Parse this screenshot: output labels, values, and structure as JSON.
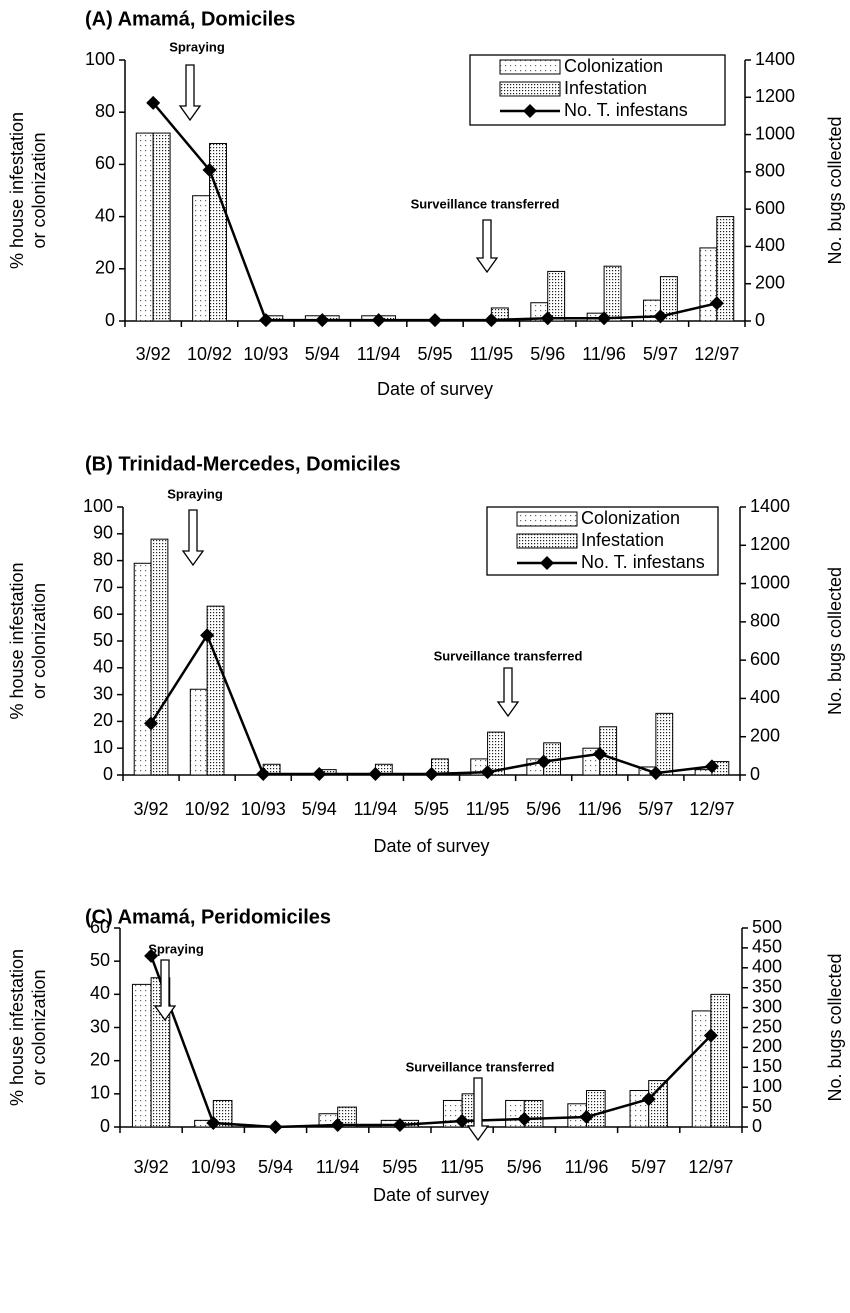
{
  "chart_data": [
    {
      "type": "bar",
      "title": "(A) Amamá, Domiciles",
      "xlabel": "Date of survey",
      "ylabel": [
        "% house infestation",
        "or colonization"
      ],
      "y2label": "No. bugs collected",
      "categories": [
        "3/92",
        "10/92",
        "10/93",
        "5/94",
        "11/94",
        "5/95",
        "11/95",
        "5/96",
        "11/96",
        "5/97",
        "12/97"
      ],
      "series": [
        {
          "name": "Colonization",
          "color": "#666666",
          "values": [
            72,
            48,
            0,
            2,
            2,
            0,
            0,
            7,
            3,
            8,
            28
          ]
        },
        {
          "name": "Infestation",
          "color": "#222222",
          "values": [
            72,
            68,
            2,
            2,
            2,
            0,
            5,
            19,
            21,
            17,
            40
          ]
        },
        {
          "name": "No. T. infestans",
          "color": "#000000",
          "axis": "y2",
          "values": [
            1170,
            810,
            5,
            5,
            5,
            5,
            5,
            15,
            15,
            25,
            95
          ]
        }
      ],
      "ylim": [
        0,
        100
      ],
      "yticks": [
        0,
        20,
        40,
        60,
        80,
        100
      ],
      "y2lim": [
        0,
        1400
      ],
      "y2ticks": [
        0,
        200,
        400,
        600,
        800,
        1000,
        1200,
        1400
      ],
      "legend": "top-right",
      "annotations": [
        "Spraying",
        "Surveillance transferred"
      ]
    },
    {
      "type": "bar",
      "title": "(B) Trinidad-Mercedes, Domiciles",
      "xlabel": "Date of survey",
      "ylabel": [
        "% house infestation",
        "or colonization"
      ],
      "y2label": "No. bugs collected",
      "categories": [
        "3/92",
        "10/92",
        "10/93",
        "5/94",
        "11/94",
        "5/95",
        "11/95",
        "5/96",
        "11/96",
        "5/97",
        "12/97"
      ],
      "series": [
        {
          "name": "Colonization",
          "color": "#666666",
          "values": [
            79,
            32,
            0,
            0,
            0,
            0,
            6,
            6,
            10,
            3,
            2
          ]
        },
        {
          "name": "Infestation",
          "color": "#222222",
          "values": [
            88,
            63,
            4,
            2,
            4,
            6,
            16,
            12,
            18,
            23,
            5
          ]
        },
        {
          "name": "No. T. infestans",
          "color": "#000000",
          "axis": "y2",
          "values": [
            270,
            730,
            5,
            5,
            5,
            5,
            15,
            70,
            110,
            10,
            45
          ]
        }
      ],
      "ylim": [
        0,
        100
      ],
      "yticks": [
        0,
        10,
        20,
        30,
        40,
        50,
        60,
        70,
        80,
        90,
        100
      ],
      "y2lim": [
        0,
        1400
      ],
      "y2ticks": [
        0,
        200,
        400,
        600,
        800,
        1000,
        1200,
        1400
      ],
      "legend": "top-right",
      "annotations": [
        "Spraying",
        "Surveillance transferred"
      ]
    },
    {
      "type": "bar",
      "title": "(C) Amamá, Peridomiciles",
      "xlabel": "Date of survey",
      "ylabel": [
        "% house infestation",
        "or colonization"
      ],
      "y2label": "No. bugs collected",
      "categories": [
        "3/92",
        "10/93",
        "5/94",
        "11/94",
        "5/95",
        "11/95",
        "5/96",
        "11/96",
        "5/97",
        "12/97"
      ],
      "series": [
        {
          "name": "Colonization",
          "color": "#666666",
          "values": [
            43,
            2,
            0,
            4,
            2,
            8,
            8,
            7,
            11,
            35
          ]
        },
        {
          "name": "Infestation",
          "color": "#222222",
          "values": [
            45,
            8,
            0,
            6,
            2,
            10,
            8,
            11,
            14,
            40
          ]
        },
        {
          "name": "No. T. infestans",
          "color": "#000000",
          "axis": "y2",
          "values": [
            430,
            10,
            0,
            5,
            5,
            15,
            20,
            25,
            70,
            230
          ]
        }
      ],
      "ylim": [
        0,
        60
      ],
      "yticks": [
        0,
        10,
        20,
        30,
        40,
        50,
        60
      ],
      "y2lim": [
        0,
        500
      ],
      "y2ticks": [
        0,
        50,
        100,
        150,
        200,
        250,
        300,
        350,
        400,
        450,
        500
      ],
      "legend": "none",
      "annotations": [
        "Spraying",
        "Surveillance transferred"
      ]
    }
  ]
}
